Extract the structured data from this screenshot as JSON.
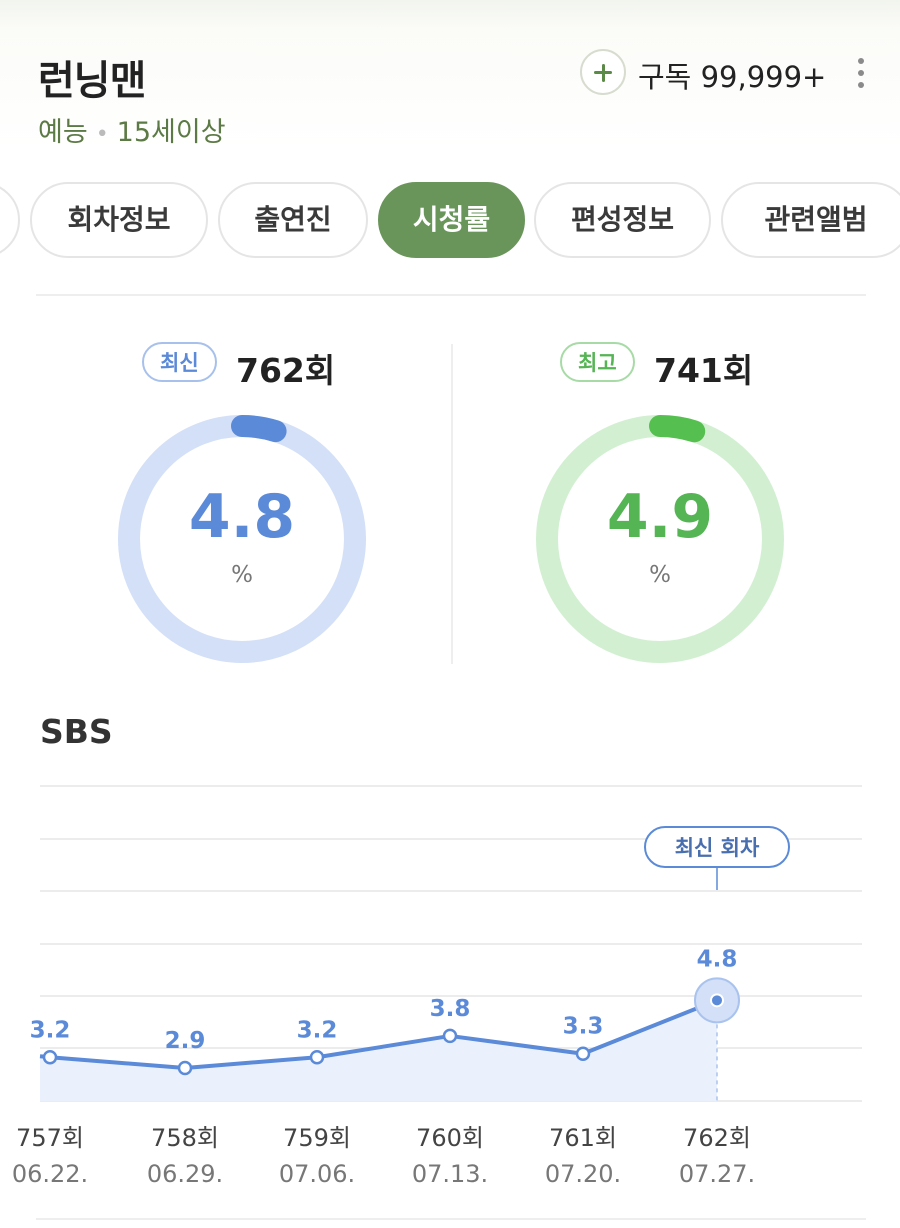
{
  "header": {
    "title": "런닝맨",
    "genre": "예능",
    "separator": "•",
    "age_rating": "15세이상",
    "subscribe_label": "구독 99,999+"
  },
  "tabs": [
    {
      "label": ""
    },
    {
      "label": "회차정보"
    },
    {
      "label": "출연진"
    },
    {
      "label": "시청률",
      "active": true
    },
    {
      "label": "편성정보"
    },
    {
      "label": "관련앨범"
    }
  ],
  "summary": {
    "latest": {
      "badge": "최신",
      "episode": "762회",
      "rating": "4.8",
      "unit": "%",
      "percent": 4.8
    },
    "best": {
      "badge": "최고",
      "episode": "741회",
      "rating": "4.9",
      "unit": "%",
      "percent": 4.9
    }
  },
  "colors": {
    "accent_green": "#6a955a",
    "latest_blue": "#5b8ad8",
    "latest_ring": "#d3e0f7",
    "best_green": "#55c04f",
    "best_ring": "#d2f0d1"
  },
  "chart_data": {
    "type": "line",
    "title": "SBS",
    "series": [
      {
        "values": [
          3.2,
          2.9,
          3.2,
          3.8,
          3.3,
          4.8
        ]
      }
    ],
    "value_labels": [
      "3.2",
      "2.9",
      "3.2",
      "3.8",
      "3.3",
      "4.8"
    ],
    "categories": [
      "757회",
      "758회",
      "759회",
      "760회",
      "761회",
      "762회"
    ],
    "dates": [
      "06.22.",
      "06.29.",
      "07.06.",
      "07.13.",
      "07.20.",
      "07.27."
    ],
    "callout": "최신 회차",
    "highlight_index": 5,
    "grid": true,
    "area_fill": true
  }
}
